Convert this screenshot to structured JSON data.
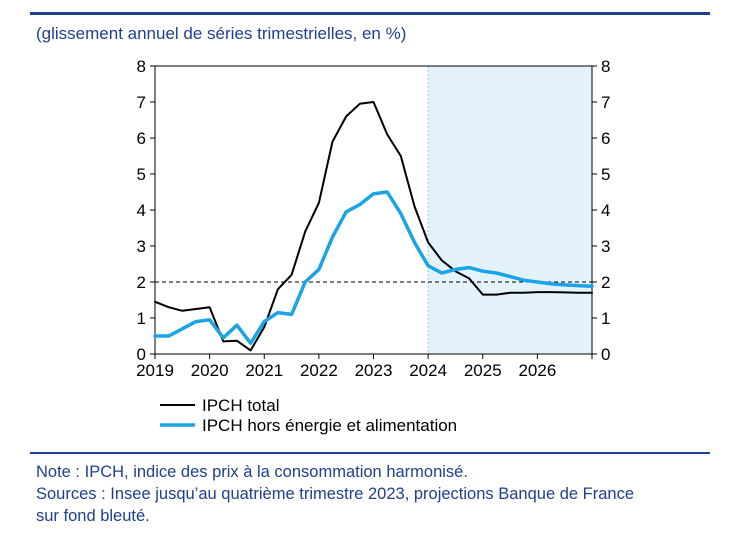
{
  "subtitle": "(glissement annuel de séries trimestrielles, en %)",
  "notes": [
    "Note : IPCH, indice des prix à la consommation harmonisé.",
    "Sources : Insee jusqu’au quatrième trimestre 2023, projections Banque de France",
    "sur fond bleuté."
  ],
  "colors": {
    "accent": "#1f3f8f",
    "shade": "#e4f3fb",
    "total": "#000000",
    "core": "#1aa3e6"
  },
  "chart_data": {
    "type": "line",
    "title": "",
    "xlabel": "",
    "ylabel": "",
    "ylim": [
      0,
      8
    ],
    "yticks": [
      0,
      1,
      2,
      3,
      4,
      5,
      6,
      7,
      8
    ],
    "xlim": [
      2019,
      2027
    ],
    "xticks": [
      "2019",
      "2020",
      "2021",
      "2022",
      "2023",
      "2024",
      "2025",
      "2026"
    ],
    "grid": false,
    "legend_position": "bottom-left",
    "projection_shading_from": 2024,
    "reference_line": 2,
    "series": [
      {
        "name": "IPCH total",
        "color": "#000000",
        "x": [
          2019.0,
          2019.25,
          2019.5,
          2019.75,
          2020.0,
          2020.25,
          2020.5,
          2020.75,
          2021.0,
          2021.25,
          2021.5,
          2021.75,
          2022.0,
          2022.25,
          2022.5,
          2022.75,
          2023.0,
          2023.25,
          2023.5,
          2023.75,
          2024.0,
          2024.25,
          2024.5,
          2024.75,
          2025.0,
          2025.25,
          2025.5,
          2025.75,
          2026.0,
          2026.25,
          2026.5,
          2026.75,
          2027.0
        ],
        "values": [
          1.45,
          1.3,
          1.2,
          1.25,
          1.3,
          0.35,
          0.37,
          0.1,
          0.75,
          1.8,
          2.2,
          3.4,
          4.2,
          5.9,
          6.6,
          6.95,
          7.0,
          6.1,
          5.5,
          4.1,
          3.1,
          2.6,
          2.3,
          2.1,
          1.65,
          1.65,
          1.7,
          1.7,
          1.72,
          1.72,
          1.71,
          1.7,
          1.7
        ]
      },
      {
        "name": "IPCH hors énergie et alimentation",
        "color": "#1aa3e6",
        "x": [
          2019.0,
          2019.25,
          2019.5,
          2019.75,
          2020.0,
          2020.25,
          2020.5,
          2020.75,
          2021.0,
          2021.25,
          2021.5,
          2021.75,
          2022.0,
          2022.25,
          2022.5,
          2022.75,
          2023.0,
          2023.25,
          2023.5,
          2023.75,
          2024.0,
          2024.25,
          2024.5,
          2024.75,
          2025.0,
          2025.25,
          2025.5,
          2025.75,
          2026.0,
          2026.25,
          2026.5,
          2026.75,
          2027.0
        ],
        "values": [
          0.5,
          0.5,
          0.7,
          0.9,
          0.95,
          0.45,
          0.8,
          0.3,
          0.9,
          1.15,
          1.1,
          2.0,
          2.35,
          3.25,
          3.95,
          4.15,
          4.45,
          4.5,
          3.9,
          3.1,
          2.45,
          2.25,
          2.35,
          2.4,
          2.3,
          2.25,
          2.15,
          2.05,
          2.0,
          1.95,
          1.92,
          1.9,
          1.88
        ]
      }
    ]
  }
}
